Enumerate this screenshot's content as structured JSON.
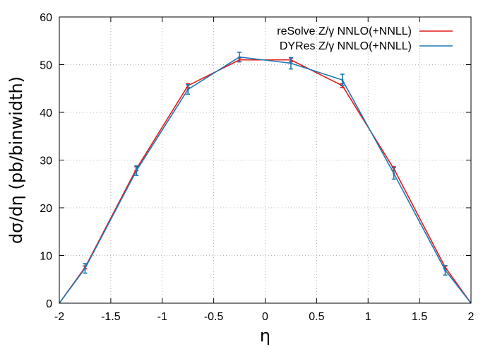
{
  "chart_data": {
    "type": "line",
    "xlabel": "η",
    "ylabel": "dσ/dη (pb/binwidth)",
    "xlim": [
      -2,
      2
    ],
    "ylim": [
      0,
      60
    ],
    "x_ticks": [
      -2,
      -1.5,
      -1,
      -0.5,
      0,
      0.5,
      1,
      1.5,
      2
    ],
    "x_tick_labels": [
      "-2",
      "-1.5",
      "-1",
      "-0.5",
      "0",
      "0.5",
      "1",
      "1.5",
      "2"
    ],
    "y_ticks": [
      0,
      10,
      20,
      30,
      40,
      50,
      60
    ],
    "y_tick_labels": [
      "0",
      "10",
      "20",
      "30",
      "40",
      "50",
      "60"
    ],
    "grid": true,
    "legend_position": "top-right",
    "series": [
      {
        "name": "reSolve Z/γ NNLO(+NNLL)",
        "color": "#e41a1c",
        "x": [
          -2,
          -1.75,
          -1.25,
          -0.75,
          -0.25,
          0.25,
          0.75,
          1.25,
          1.75,
          2
        ],
        "y": [
          0,
          7.5,
          28.2,
          45.6,
          51.0,
          51.0,
          45.6,
          28.2,
          7.5,
          0
        ],
        "err": [
          null,
          0.3,
          0.4,
          0.4,
          0.4,
          0.4,
          0.4,
          0.4,
          0.3,
          null
        ]
      },
      {
        "name": "DYRes Z/γ NNLO(+NNLL)",
        "color": "#1f78b4",
        "x": [
          -2,
          -1.75,
          -1.25,
          -0.75,
          -0.25,
          0.25,
          0.75,
          1.25,
          1.75,
          2
        ],
        "y": [
          0,
          7.3,
          27.8,
          44.8,
          51.6,
          50.3,
          46.8,
          27.2,
          6.9,
          0
        ],
        "err": [
          null,
          1.0,
          1.0,
          1.0,
          1.0,
          1.2,
          1.2,
          1.2,
          1.0,
          null
        ]
      }
    ]
  }
}
